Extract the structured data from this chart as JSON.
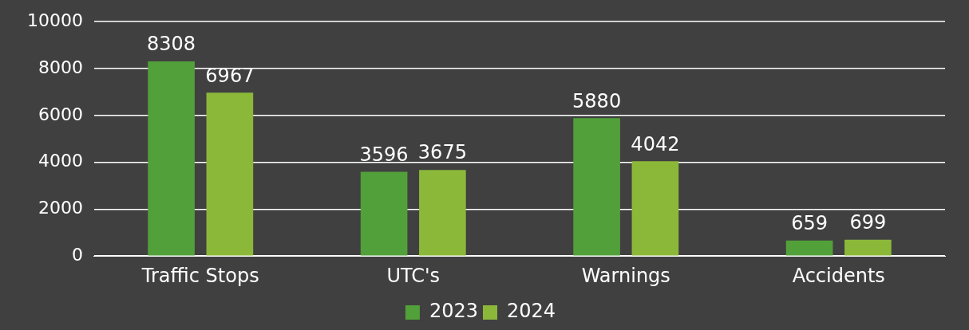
{
  "chart_data": {
    "type": "bar",
    "categories": [
      "Traffic Stops",
      "UTC's",
      "Warnings",
      "Accidents"
    ],
    "series": [
      {
        "name": "2023",
        "color": "#52a03a",
        "values": [
          8308,
          3596,
          5880,
          659
        ]
      },
      {
        "name": "2024",
        "color": "#8cb83a",
        "values": [
          6967,
          3675,
          4042,
          699
        ]
      }
    ],
    "ylim": [
      0,
      10000
    ],
    "yticks": [
      0,
      2000,
      4000,
      6000,
      8000,
      10000
    ],
    "grid": "y",
    "legend": "bottom",
    "data_labels": true
  }
}
